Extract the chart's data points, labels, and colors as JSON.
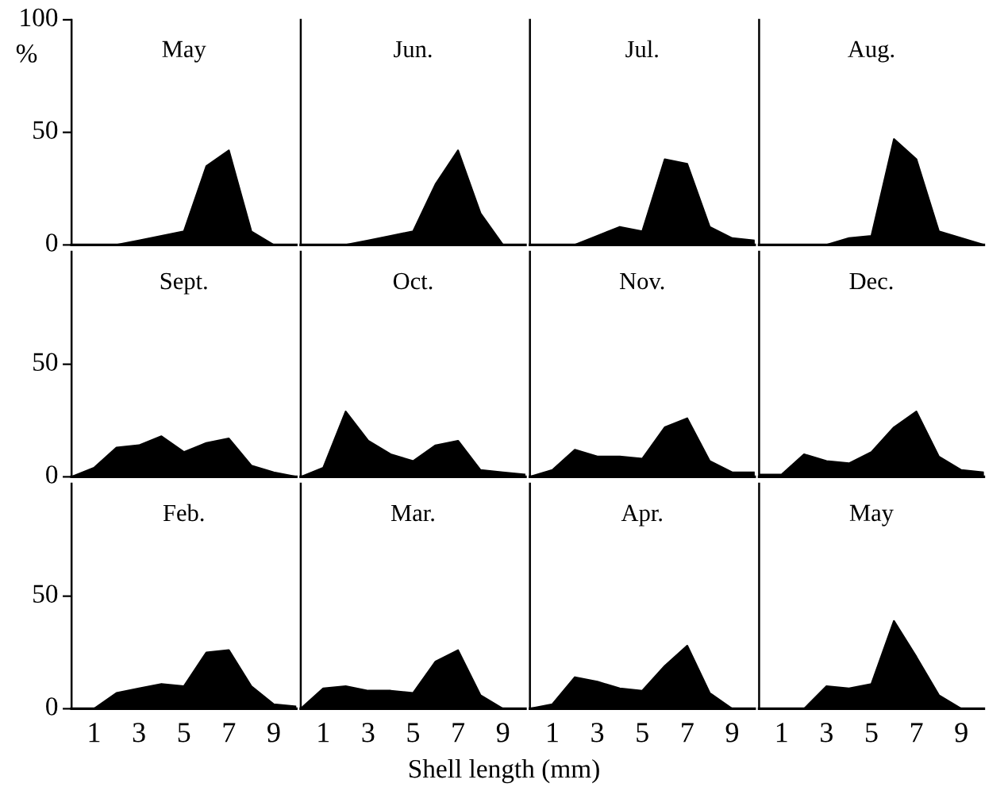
{
  "chart_data": [
    {
      "type": "area",
      "title": "May",
      "ylabel": "%",
      "x": [
        0,
        1,
        2,
        3,
        4,
        5,
        6,
        7,
        8,
        9,
        10
      ],
      "series": [
        {
          "color": "#000000",
          "values": [
            0,
            0,
            0,
            2,
            4,
            6,
            35,
            42,
            6,
            0,
            0
          ]
        }
      ],
      "xlim": [
        0,
        10
      ],
      "ylim": [
        0,
        100
      ],
      "yticks": [
        0,
        50,
        100
      ],
      "tick_labels": "y"
    },
    {
      "type": "area",
      "title": "Jun.",
      "x": [
        0,
        1,
        2,
        3,
        4,
        5,
        6,
        7,
        8,
        9,
        10
      ],
      "series": [
        {
          "color": "#000000",
          "values": [
            0,
            0,
            0,
            2,
            4,
            6,
            27,
            42,
            14,
            0,
            0
          ]
        }
      ],
      "xlim": [
        0,
        10
      ],
      "ylim": [
        0,
        100
      ],
      "tick_labels": false
    },
    {
      "type": "area",
      "title": "Jul.",
      "x": [
        0,
        1,
        2,
        3,
        4,
        5,
        6,
        7,
        8,
        9,
        10
      ],
      "series": [
        {
          "color": "#000000",
          "values": [
            0,
            0,
            0,
            4,
            8,
            6,
            38,
            36,
            8,
            3,
            2
          ]
        }
      ],
      "xlim": [
        0,
        10
      ],
      "ylim": [
        0,
        100
      ],
      "tick_labels": false
    },
    {
      "type": "area",
      "title": "Aug.",
      "x": [
        0,
        1,
        2,
        3,
        4,
        5,
        6,
        7,
        8,
        9,
        10
      ],
      "series": [
        {
          "color": "#000000",
          "values": [
            0,
            0,
            0,
            0,
            3,
            4,
            47,
            38,
            6,
            3,
            0
          ]
        }
      ],
      "xlim": [
        0,
        10
      ],
      "ylim": [
        0,
        100
      ],
      "tick_labels": false
    },
    {
      "type": "area",
      "title": "Sept.",
      "x": [
        0,
        1,
        2,
        3,
        4,
        5,
        6,
        7,
        8,
        9,
        10
      ],
      "series": [
        {
          "color": "#000000",
          "values": [
            0,
            4,
            13,
            14,
            18,
            11,
            15,
            17,
            5,
            2,
            0
          ]
        }
      ],
      "xlim": [
        0,
        10
      ],
      "ylim": [
        0,
        100
      ],
      "yticks": [
        0,
        50
      ],
      "tick_labels": "y"
    },
    {
      "type": "area",
      "title": "Oct.",
      "x": [
        0,
        1,
        2,
        3,
        4,
        5,
        6,
        7,
        8,
        9,
        10
      ],
      "series": [
        {
          "color": "#000000",
          "values": [
            0,
            4,
            29,
            16,
            10,
            7,
            14,
            16,
            3,
            2,
            1
          ]
        }
      ],
      "xlim": [
        0,
        10
      ],
      "ylim": [
        0,
        100
      ],
      "tick_labels": false
    },
    {
      "type": "area",
      "title": "Nov.",
      "x": [
        0,
        1,
        2,
        3,
        4,
        5,
        6,
        7,
        8,
        9,
        10
      ],
      "series": [
        {
          "color": "#000000",
          "values": [
            0,
            3,
            12,
            9,
            9,
            8,
            22,
            26,
            7,
            2,
            2
          ]
        }
      ],
      "xlim": [
        0,
        10
      ],
      "ylim": [
        0,
        100
      ],
      "tick_labels": false
    },
    {
      "type": "area",
      "title": "Dec.",
      "x": [
        0,
        1,
        2,
        3,
        4,
        5,
        6,
        7,
        8,
        9,
        10
      ],
      "series": [
        {
          "color": "#000000",
          "values": [
            1,
            1,
            10,
            7,
            6,
            11,
            22,
            29,
            9,
            3,
            2
          ]
        }
      ],
      "xlim": [
        0,
        10
      ],
      "ylim": [
        0,
        100
      ],
      "tick_labels": false
    },
    {
      "type": "area",
      "title": "Feb.",
      "x": [
        0,
        1,
        2,
        3,
        4,
        5,
        6,
        7,
        8,
        9,
        10
      ],
      "series": [
        {
          "color": "#000000",
          "values": [
            0,
            0,
            7,
            9,
            11,
            10,
            25,
            26,
            10,
            2,
            1
          ]
        }
      ],
      "xlim": [
        0,
        10
      ],
      "ylim": [
        0,
        100
      ],
      "xticks": [
        1,
        3,
        5,
        7,
        9
      ],
      "yticks": [
        0,
        50
      ]
    },
    {
      "type": "area",
      "title": "Mar.",
      "xlabel": "Shell length (mm)",
      "x": [
        0,
        1,
        2,
        3,
        4,
        5,
        6,
        7,
        8,
        9,
        10
      ],
      "series": [
        {
          "color": "#000000",
          "values": [
            0,
            9,
            10,
            8,
            8,
            7,
            21,
            26,
            6,
            0,
            0
          ]
        }
      ],
      "xlim": [
        0,
        10
      ],
      "ylim": [
        0,
        100
      ],
      "xticks": [
        1,
        3,
        5,
        7,
        9
      ],
      "tick_labels": "x"
    },
    {
      "type": "area",
      "title": "Apr.",
      "x": [
        0,
        1,
        2,
        3,
        4,
        5,
        6,
        7,
        8,
        9,
        10
      ],
      "series": [
        {
          "color": "#000000",
          "values": [
            0,
            2,
            14,
            12,
            9,
            8,
            19,
            28,
            7,
            0,
            0
          ]
        }
      ],
      "xlim": [
        0,
        10
      ],
      "ylim": [
        0,
        100
      ],
      "xticks": [
        1,
        3,
        5,
        7,
        9
      ],
      "tick_labels": "x"
    },
    {
      "type": "area",
      "title": "May",
      "x": [
        0,
        1,
        2,
        3,
        4,
        5,
        6,
        7,
        8,
        9,
        10
      ],
      "series": [
        {
          "color": "#000000",
          "values": [
            0,
            0,
            0,
            10,
            9,
            11,
            39,
            23,
            6,
            0,
            0
          ]
        }
      ],
      "xlim": [
        0,
        10
      ],
      "ylim": [
        0,
        100
      ],
      "xticks": [
        1,
        3,
        5,
        7,
        9
      ],
      "tick_labels": "x"
    }
  ]
}
